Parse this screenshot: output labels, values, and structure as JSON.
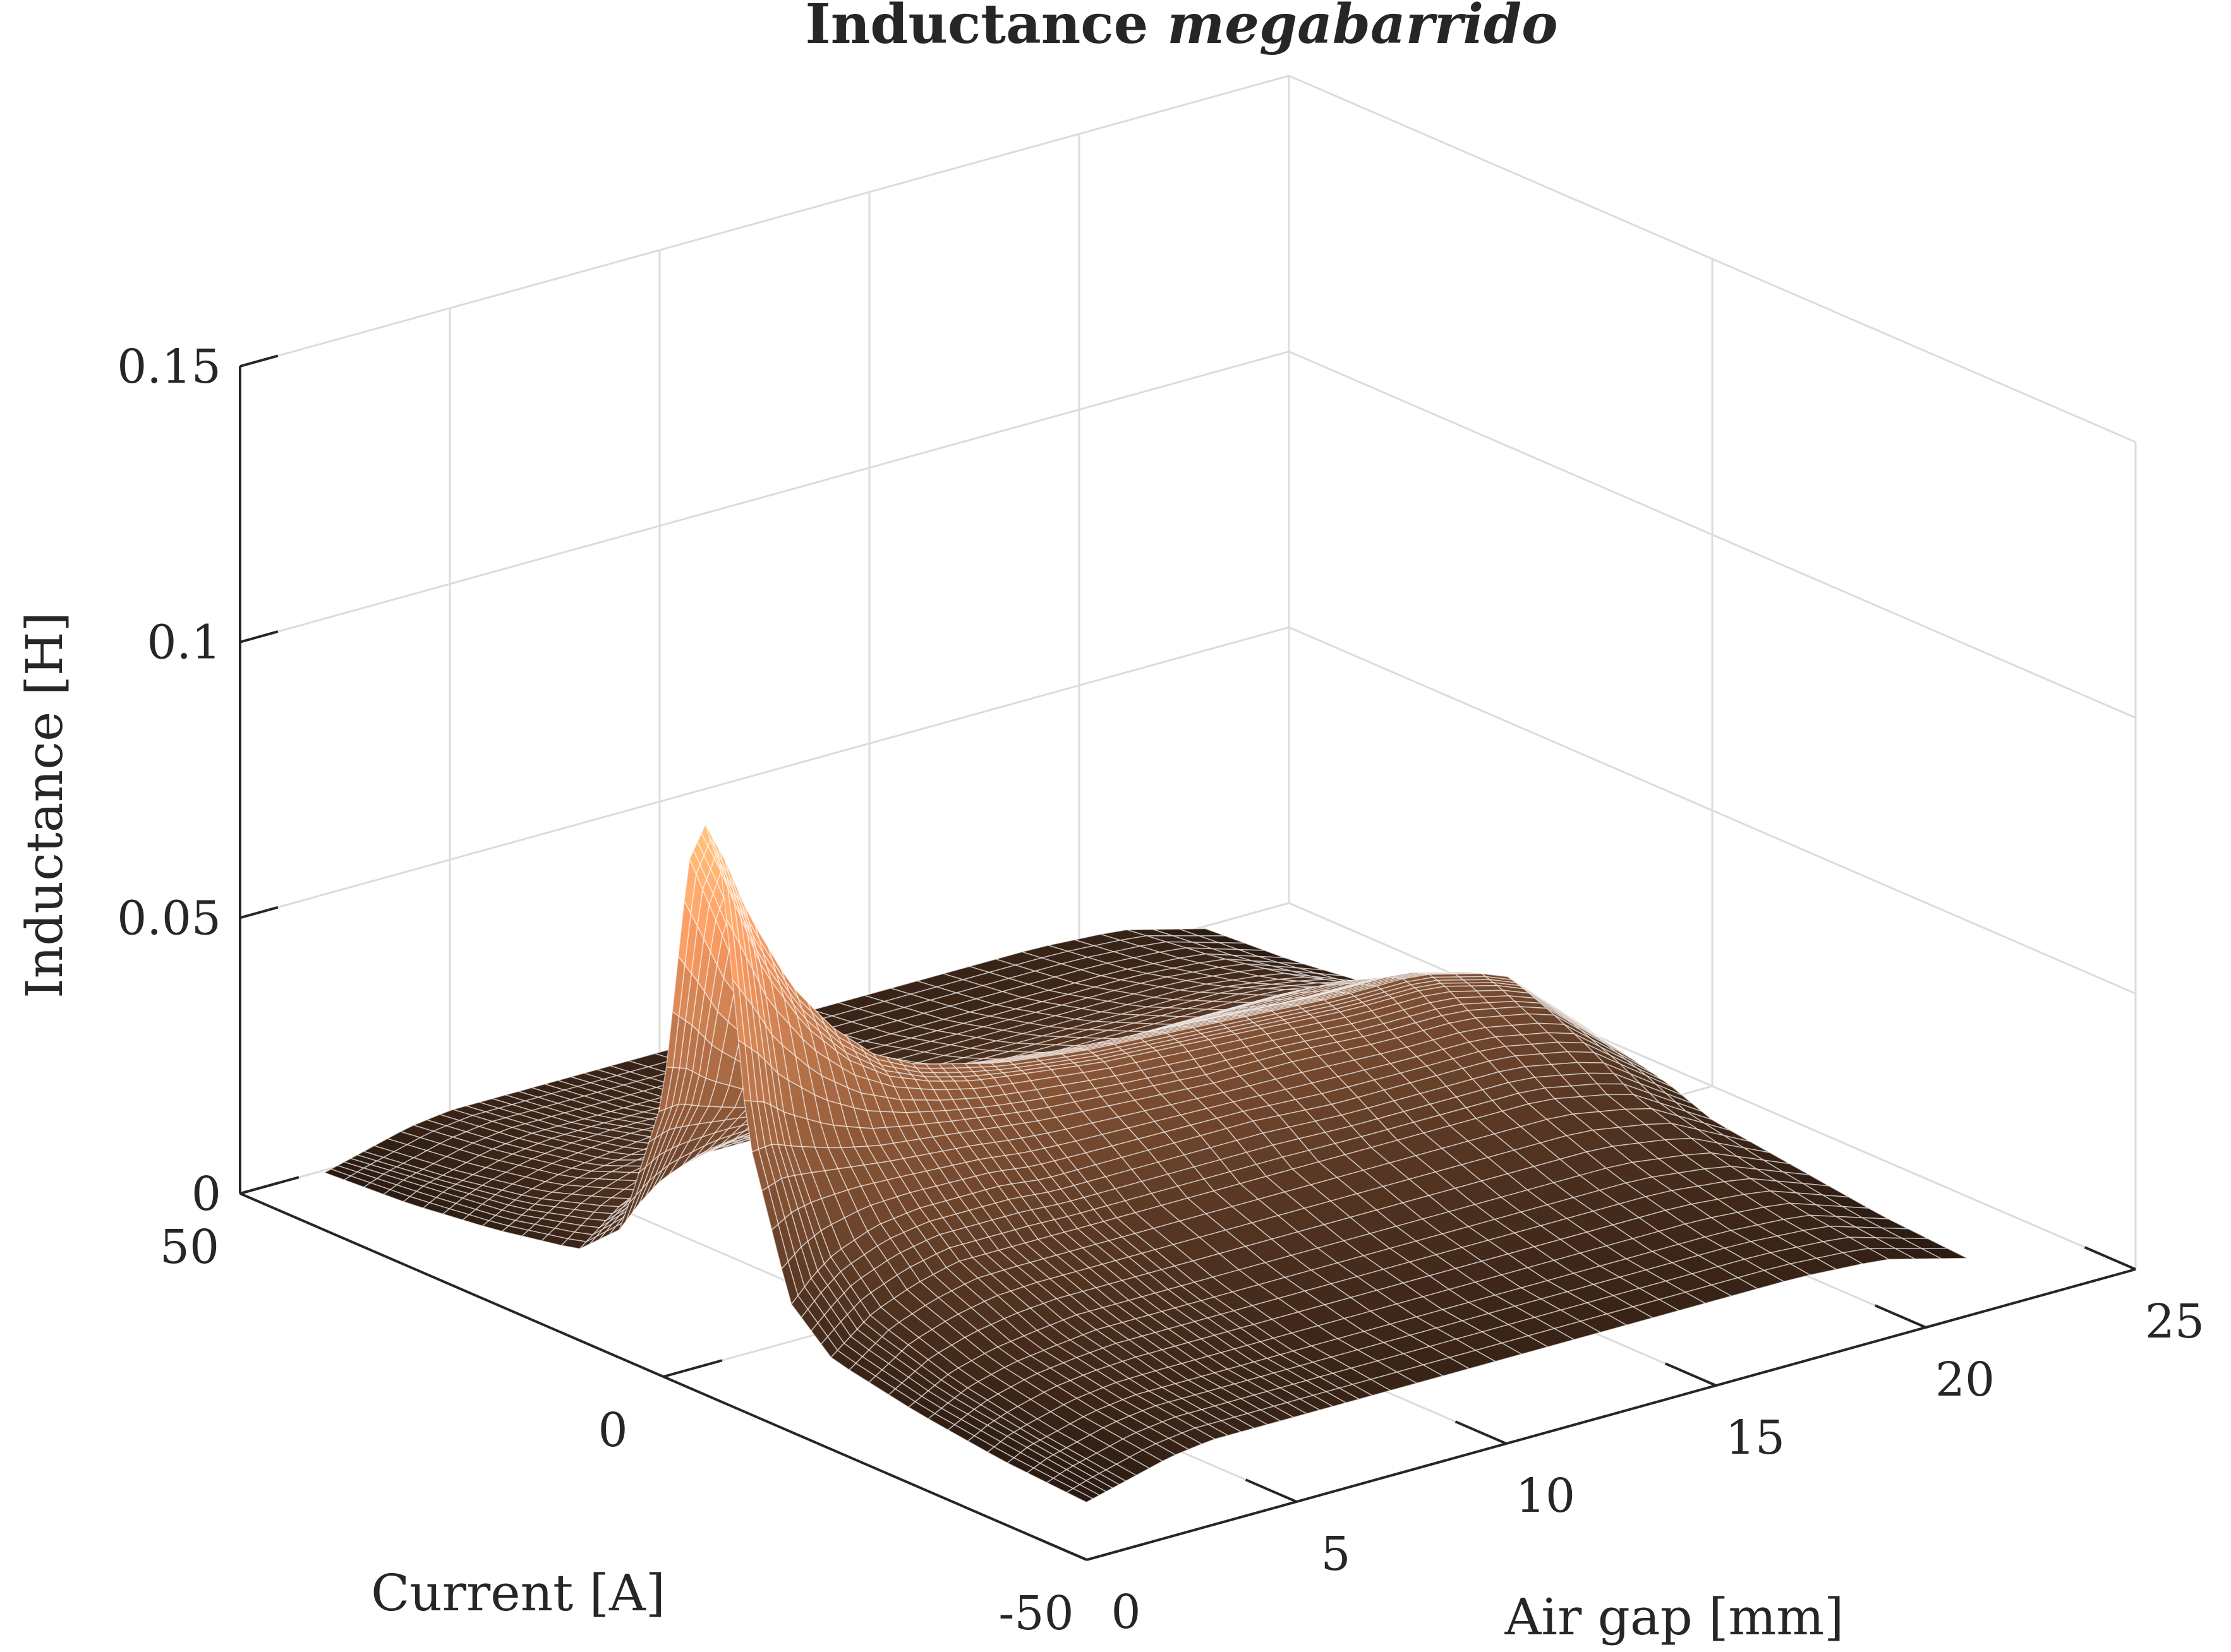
{
  "figure": {
    "title_plain": "Inductance ",
    "title_italic": "megabarrido"
  },
  "colors": {
    "grid": "#dcdcdc",
    "axis": "#262626",
    "mesh_edge": "#ffffff",
    "colormap": "copper"
  },
  "chart_data": {
    "type": "surface",
    "title": "Inductance megabarrido",
    "xlabel": "Air gap [mm]",
    "ylabel": "Current [A]",
    "zlabel": "Inductance [H]",
    "xlim": [
      0,
      25
    ],
    "ylim": [
      -50,
      50
    ],
    "zlim": [
      0,
      0.15
    ],
    "x_ticks": [
      0,
      5,
      10,
      15,
      20,
      25
    ],
    "y_ticks": [
      -50,
      0,
      50
    ],
    "z_ticks": [
      0,
      0.05,
      0.1,
      0.15
    ],
    "x_tick_labels": [
      "0",
      "5",
      "10",
      "15",
      "20",
      "25"
    ],
    "y_tick_labels": [
      "-50",
      "0",
      "50"
    ],
    "z_tick_labels": [
      "0",
      "0.05",
      "0.1",
      "0.15"
    ],
    "grid": true,
    "view": "3d",
    "colormap": "copper",
    "x_samples_mm": [
      1,
      1.5,
      2,
      3,
      4,
      5,
      6,
      7,
      8,
      10,
      12,
      14,
      16,
      18,
      20,
      22
    ],
    "y_samples_A": [
      -45,
      -35,
      -25,
      -15,
      -10,
      -5,
      -2,
      0,
      2,
      5,
      10,
      15,
      25,
      35,
      45
    ],
    "z_values_H": [
      [
        0.005,
        0.006,
        0.007,
        0.009,
        0.01,
        0.01,
        0.01,
        0.01,
        0.01,
        0.01,
        0.01,
        0.01,
        0.01,
        0.01,
        0.009,
        0.005
      ],
      [
        0.006,
        0.008,
        0.009,
        0.011,
        0.012,
        0.012,
        0.012,
        0.012,
        0.012,
        0.012,
        0.012,
        0.012,
        0.012,
        0.012,
        0.011,
        0.006
      ],
      [
        0.008,
        0.01,
        0.012,
        0.014,
        0.015,
        0.016,
        0.016,
        0.016,
        0.016,
        0.016,
        0.016,
        0.016,
        0.016,
        0.016,
        0.014,
        0.008
      ],
      [
        0.011,
        0.014,
        0.017,
        0.02,
        0.022,
        0.022,
        0.022,
        0.022,
        0.022,
        0.022,
        0.022,
        0.022,
        0.022,
        0.022,
        0.019,
        0.01
      ],
      [
        0.018,
        0.022,
        0.025,
        0.028,
        0.029,
        0.029,
        0.029,
        0.028,
        0.028,
        0.028,
        0.028,
        0.027,
        0.027,
        0.027,
        0.024,
        0.013
      ],
      [
        0.045,
        0.045,
        0.043,
        0.04,
        0.038,
        0.037,
        0.036,
        0.035,
        0.034,
        0.033,
        0.032,
        0.032,
        0.031,
        0.031,
        0.028,
        0.015
      ],
      [
        0.09,
        0.08,
        0.07,
        0.058,
        0.05,
        0.045,
        0.042,
        0.04,
        0.039,
        0.037,
        0.036,
        0.035,
        0.034,
        0.034,
        0.03,
        0.016
      ],
      [
        0.098,
        0.09,
        0.08,
        0.065,
        0.055,
        0.048,
        0.044,
        0.042,
        0.04,
        0.038,
        0.037,
        0.036,
        0.035,
        0.035,
        0.031,
        0.017
      ],
      [
        0.09,
        0.08,
        0.07,
        0.058,
        0.05,
        0.045,
        0.042,
        0.04,
        0.039,
        0.037,
        0.036,
        0.035,
        0.034,
        0.034,
        0.03,
        0.016
      ],
      [
        0.045,
        0.045,
        0.043,
        0.04,
        0.038,
        0.037,
        0.036,
        0.035,
        0.034,
        0.033,
        0.032,
        0.032,
        0.031,
        0.031,
        0.028,
        0.015
      ],
      [
        0.018,
        0.022,
        0.025,
        0.028,
        0.029,
        0.029,
        0.029,
        0.028,
        0.028,
        0.028,
        0.028,
        0.027,
        0.027,
        0.027,
        0.024,
        0.013
      ],
      [
        0.011,
        0.014,
        0.017,
        0.02,
        0.022,
        0.022,
        0.022,
        0.022,
        0.022,
        0.022,
        0.022,
        0.022,
        0.022,
        0.022,
        0.019,
        0.01
      ],
      [
        0.008,
        0.01,
        0.012,
        0.014,
        0.015,
        0.016,
        0.016,
        0.016,
        0.016,
        0.016,
        0.016,
        0.016,
        0.016,
        0.016,
        0.014,
        0.008
      ],
      [
        0.006,
        0.008,
        0.009,
        0.011,
        0.012,
        0.012,
        0.012,
        0.012,
        0.012,
        0.012,
        0.012,
        0.012,
        0.012,
        0.012,
        0.011,
        0.006
      ],
      [
        0.005,
        0.006,
        0.007,
        0.009,
        0.01,
        0.01,
        0.01,
        0.01,
        0.01,
        0.01,
        0.01,
        0.01,
        0.01,
        0.01,
        0.009,
        0.005
      ]
    ]
  }
}
